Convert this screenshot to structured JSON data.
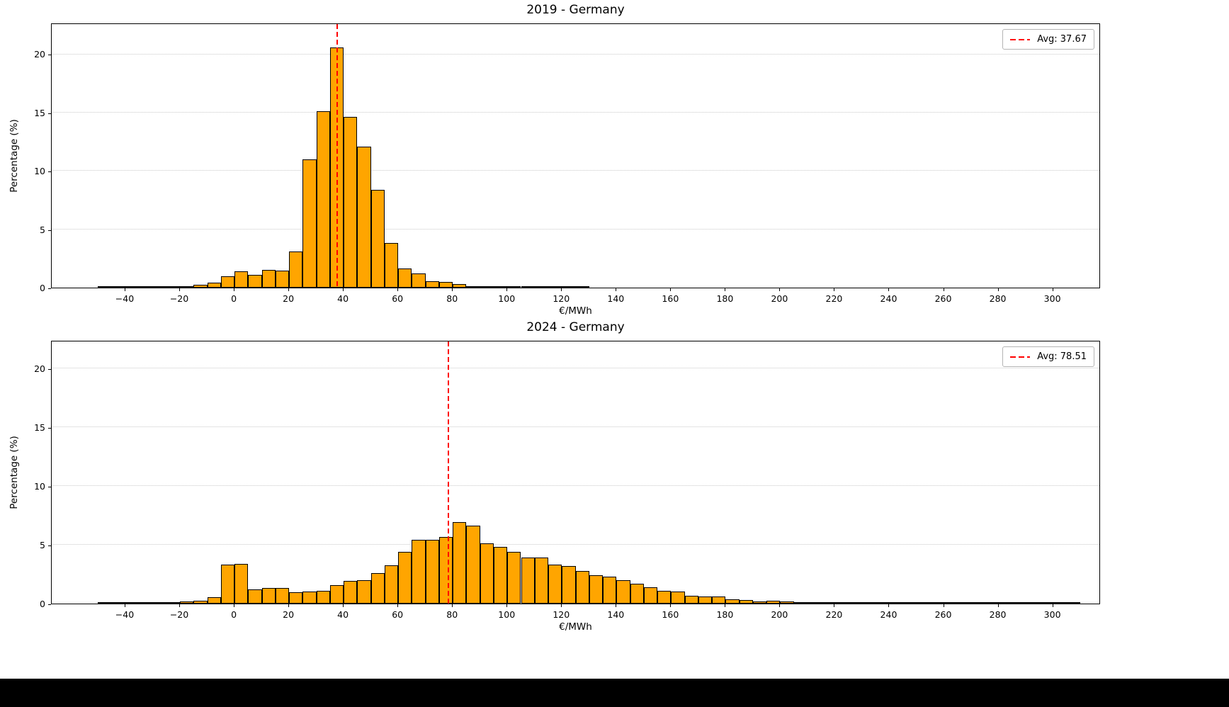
{
  "figure": {
    "background": "#ffffff",
    "bottom_bar_color": "#000000"
  },
  "chart_data": [
    {
      "type": "bar",
      "title": "2019 - Germany",
      "xlabel": "€/MWh",
      "ylabel": "Percentage (%)",
      "legend_label": "Avg: 37.67",
      "legend_position": "upper right",
      "avg": 37.67,
      "avg_line_color": "#ff0000",
      "bar_color": "#ffa500",
      "bar_edge_color": "#000000",
      "grid": "horizontal-dotted",
      "bin_start": -50,
      "bin_width": 5,
      "xlim": [
        -67,
        317.5
      ],
      "ylim": [
        0,
        22.7
      ],
      "xtick_values": [
        -40,
        -20,
        0,
        20,
        40,
        60,
        80,
        100,
        120,
        140,
        160,
        180,
        200,
        220,
        240,
        260,
        280,
        300
      ],
      "xtick_labels": [
        "−40",
        "−20",
        "0",
        "20",
        "40",
        "60",
        "80",
        "100",
        "120",
        "140",
        "160",
        "180",
        "200",
        "220",
        "240",
        "260",
        "280",
        "300"
      ],
      "yticks": [
        0,
        5,
        10,
        15,
        20
      ],
      "ytick_labels": [
        "0",
        "5",
        "10",
        "15",
        "20"
      ],
      "values": [
        0.1,
        0.05,
        0.12,
        0.06,
        0.05,
        0.08,
        0.15,
        0.25,
        0.45,
        0.95,
        1.4,
        1.1,
        1.5,
        1.45,
        3.1,
        11.0,
        15.1,
        20.6,
        14.6,
        12.1,
        8.4,
        3.8,
        1.65,
        1.2,
        0.55,
        0.5,
        0.3,
        0.15,
        0.1,
        0.08,
        0.05,
        0.05,
        0.03,
        0.03,
        0.05,
        0.02,
        0,
        0,
        0,
        0,
        0,
        0,
        0,
        0,
        0,
        0,
        0,
        0,
        0,
        0,
        0,
        0,
        0,
        0,
        0,
        0,
        0,
        0,
        0,
        0,
        0,
        0,
        0,
        0,
        0,
        0,
        0,
        0,
        0,
        0,
        0,
        0
      ]
    },
    {
      "type": "bar",
      "title": "2024 - Germany",
      "xlabel": "€/MWh",
      "ylabel": "Percentage (%)",
      "legend_label": "Avg: 78.51",
      "legend_position": "upper right",
      "avg": 78.51,
      "avg_line_color": "#ff0000",
      "bar_color": "#ffa500",
      "bar_edge_color": "#000000",
      "grid": "horizontal-dotted",
      "bin_start": -50,
      "bin_width": 5,
      "xlim": [
        -67,
        317.5
      ],
      "ylim": [
        0,
        22.4
      ],
      "xtick_values": [
        -40,
        -20,
        0,
        20,
        40,
        60,
        80,
        100,
        120,
        140,
        160,
        180,
        200,
        220,
        240,
        260,
        280,
        300
      ],
      "xtick_labels": [
        "−40",
        "−20",
        "0",
        "20",
        "40",
        "60",
        "80",
        "100",
        "120",
        "140",
        "160",
        "180",
        "200",
        "220",
        "240",
        "260",
        "280",
        "300"
      ],
      "yticks": [
        0,
        5,
        10,
        15,
        20
      ],
      "ytick_labels": [
        "0",
        "5",
        "10",
        "15",
        "20"
      ],
      "values": [
        0.1,
        0.05,
        0.08,
        0.06,
        0.06,
        0.15,
        0.2,
        0.22,
        0.55,
        3.3,
        3.4,
        1.2,
        1.3,
        1.3,
        0.95,
        1.0,
        1.1,
        1.55,
        1.95,
        2.0,
        2.6,
        3.25,
        4.4,
        5.4,
        5.4,
        5.65,
        6.9,
        6.6,
        5.1,
        4.8,
        4.4,
        3.9,
        3.9,
        3.3,
        3.2,
        2.8,
        2.4,
        2.3,
        2.0,
        1.7,
        1.4,
        1.1,
        1.0,
        0.65,
        0.6,
        0.6,
        0.35,
        0.3,
        0.2,
        0.25,
        0.2,
        0.15,
        0.1,
        0.12,
        0.1,
        0.08,
        0.05,
        0.05,
        0.05,
        0.04,
        0.05,
        0.03,
        0.03,
        0.02,
        0.03,
        0.02,
        0.02,
        0.03,
        0.02,
        0.05,
        0.03,
        0.02
      ]
    }
  ]
}
